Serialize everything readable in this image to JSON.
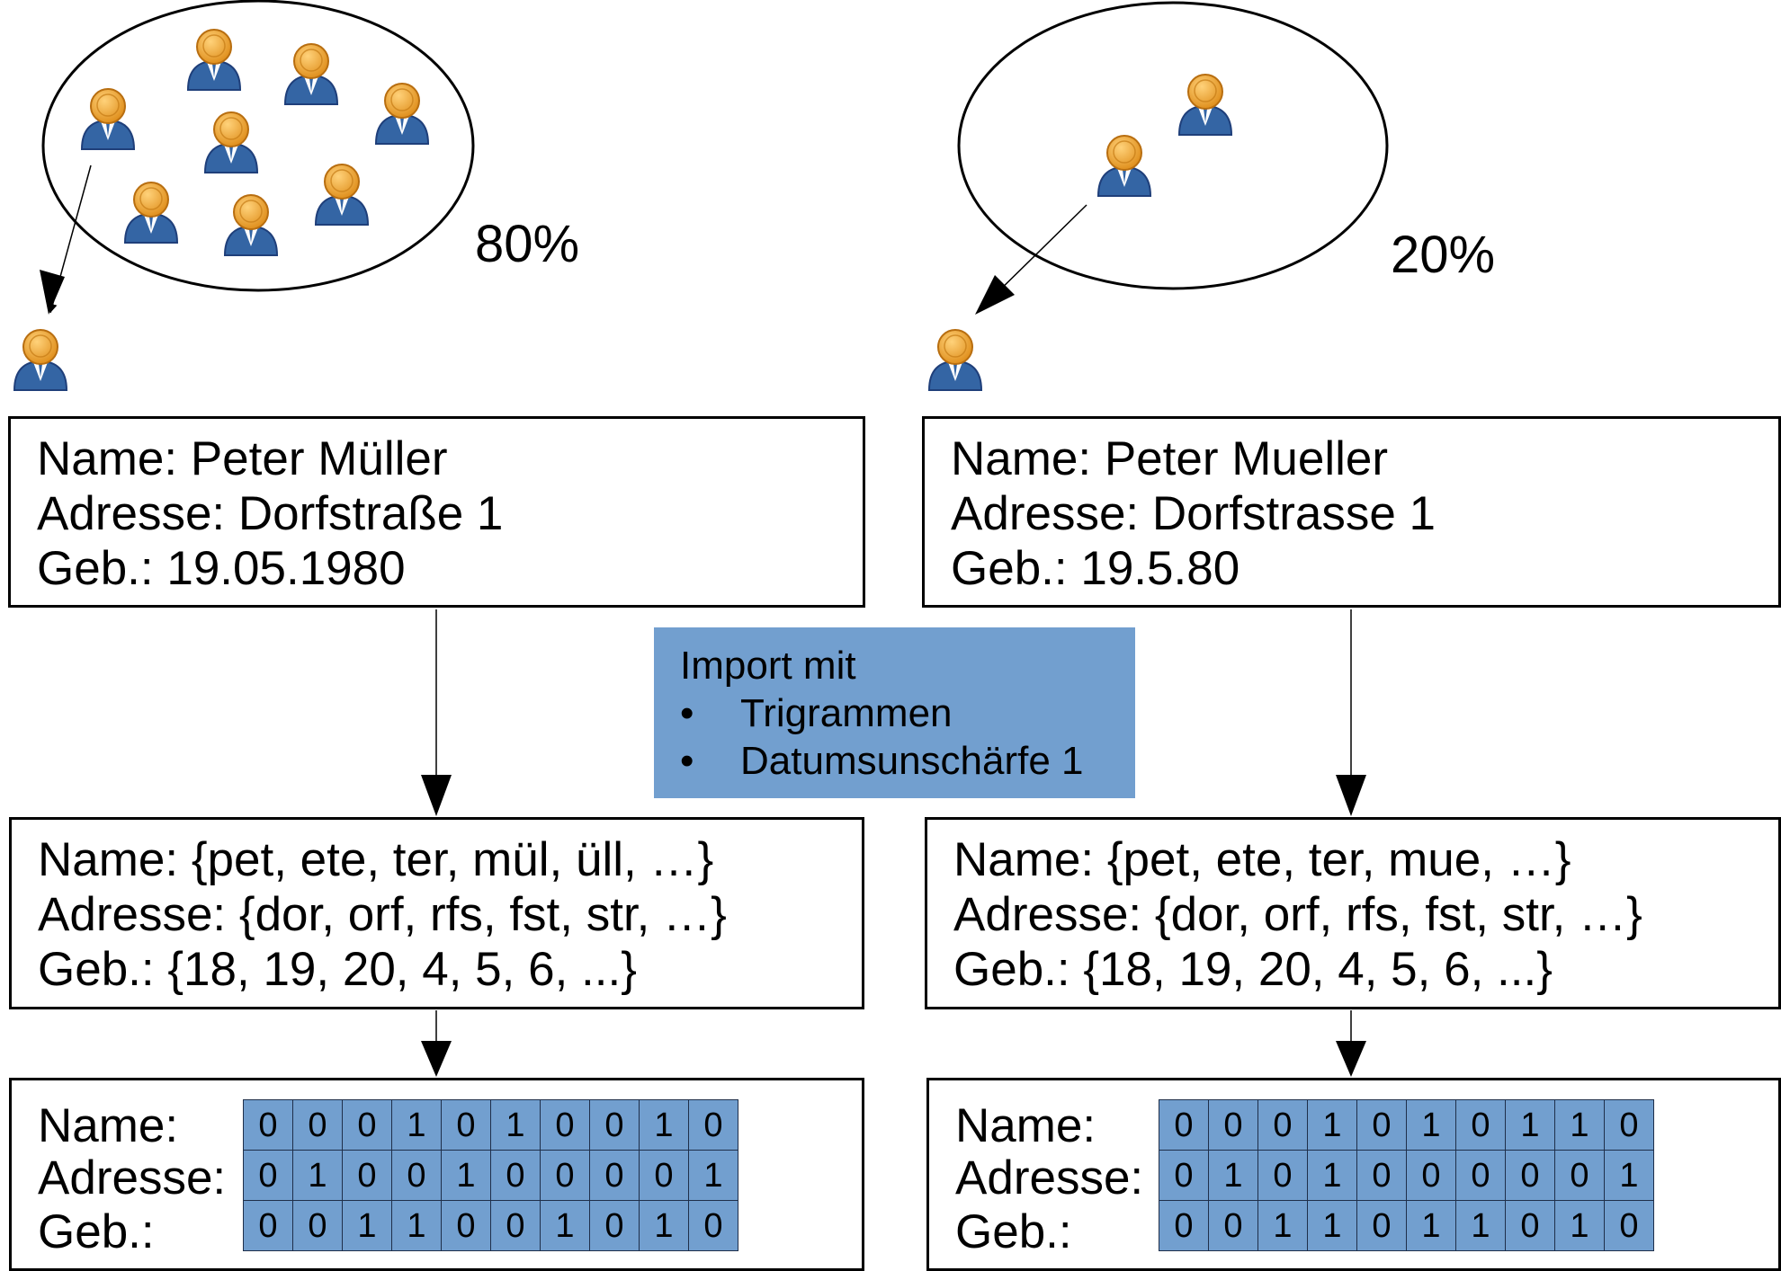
{
  "groups": [
    {
      "percentage": "80%",
      "record": [
        "Name: Peter Müller",
        "Adresse: Dorfstraße 1",
        "Geb.: 19.05.1980"
      ],
      "trigrams": [
        "Name: {pet, ete, ter, mül, üll, …}",
        "Adresse: {dor, orf, rfs, fst, str, …}",
        "Geb.: {18, 19, 20, 4, 5, 6, ...}"
      ],
      "bit_labels": [
        "Name:",
        "Adresse:",
        "Geb.:"
      ],
      "bits": [
        [
          "0",
          "0",
          "0",
          "1",
          "0",
          "1",
          "0",
          "0",
          "1",
          "0"
        ],
        [
          "0",
          "1",
          "0",
          "0",
          "1",
          "0",
          "0",
          "0",
          "0",
          "1"
        ],
        [
          "0",
          "0",
          "1",
          "1",
          "0",
          "0",
          "1",
          "0",
          "1",
          "0"
        ]
      ]
    },
    {
      "percentage": "20%",
      "record": [
        "Name: Peter Mueller",
        "Adresse: Dorfstrasse 1",
        "Geb.: 19.5.80"
      ],
      "trigrams": [
        "Name: {pet, ete, ter, mue, …}",
        "Adresse: {dor, orf, rfs, fst, str, …}",
        "Geb.: {18, 19, 20, 4, 5, 6, ...}"
      ],
      "bit_labels": [
        "Name:",
        "Adresse:",
        "Geb.:"
      ],
      "bits": [
        [
          "0",
          "0",
          "0",
          "1",
          "0",
          "1",
          "0",
          "1",
          "1",
          "0"
        ],
        [
          "0",
          "1",
          "0",
          "1",
          "0",
          "0",
          "0",
          "0",
          "0",
          "1"
        ],
        [
          "0",
          "0",
          "1",
          "1",
          "0",
          "1",
          "1",
          "0",
          "1",
          "0"
        ]
      ]
    }
  ],
  "import_box": {
    "title": "Import mit",
    "items": [
      "Trigrammen",
      "Datumsunschärfe 1"
    ]
  },
  "colors": {
    "person_head": "#f0a030",
    "person_body": "#3465a4",
    "highlight_fill": "#729fcf"
  },
  "icons": [
    "person-icon"
  ]
}
